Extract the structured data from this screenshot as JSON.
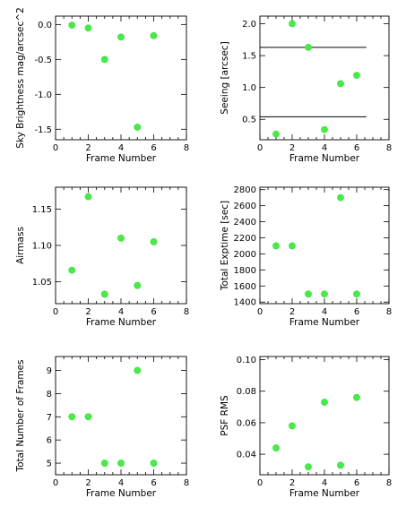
{
  "colors": {
    "point": "#44ee44",
    "axes": "#000000",
    "background": "#ffffff"
  },
  "chart_data": [
    {
      "type": "scatter",
      "title": "",
      "xlabel": "Frame Number",
      "ylabel": "Sky Brightness mag/arcsec^2",
      "xlim": [
        0,
        8
      ],
      "ylim": [
        -1.65,
        0.12
      ],
      "xticks": [
        0,
        2,
        4,
        6,
        8
      ],
      "yticks": [
        0.0,
        -0.5,
        -1.0,
        -1.5
      ],
      "ytick_labels": [
        "0.0",
        "-0.5",
        "-1.0",
        "-1.5"
      ],
      "grid": false,
      "series": [
        {
          "x": [
            1,
            2,
            3,
            4,
            5,
            6
          ],
          "y": [
            -0.01,
            -0.05,
            -0.5,
            -0.18,
            -1.47,
            -0.16
          ]
        }
      ]
    },
    {
      "type": "scatter",
      "title": "",
      "xlabel": "Frame Number",
      "ylabel": "Seeing [arcsec]",
      "xlim": [
        0,
        8
      ],
      "ylim": [
        0.18,
        2.12
      ],
      "xticks": [
        0,
        2,
        4,
        6,
        8
      ],
      "yticks": [
        0.5,
        1.0,
        1.5,
        2.0
      ],
      "ytick_labels": [
        "0.5",
        "1.0",
        "1.5",
        "2.0"
      ],
      "grid": false,
      "series": [
        {
          "x": [
            1,
            2,
            3,
            4,
            5,
            6
          ],
          "y": [
            0.27,
            2.0,
            1.63,
            0.34,
            1.06,
            1.19
          ]
        }
      ],
      "reference_lines": [
        1.63,
        0.54
      ]
    },
    {
      "type": "scatter",
      "title": "",
      "xlabel": "Frame Number",
      "ylabel": "Airmass",
      "xlim": [
        0,
        8
      ],
      "ylim": [
        1.02,
        1.18
      ],
      "xticks": [
        0,
        2,
        4,
        6,
        8
      ],
      "yticks": [
        1.05,
        1.1,
        1.15
      ],
      "ytick_labels": [
        "1.05",
        "1.10",
        "1.15"
      ],
      "grid": false,
      "series": [
        {
          "x": [
            1,
            2,
            3,
            4,
            5,
            6
          ],
          "y": [
            1.066,
            1.167,
            1.033,
            1.11,
            1.045,
            1.105
          ]
        }
      ]
    },
    {
      "type": "scatter",
      "title": "",
      "xlabel": "Frame Number",
      "ylabel": "Total Exptime [sec]",
      "xlim": [
        0,
        8
      ],
      "ylim": [
        1380,
        2830
      ],
      "xticks": [
        0,
        2,
        4,
        6,
        8
      ],
      "yticks": [
        1400,
        1600,
        1800,
        2000,
        2200,
        2400,
        2600,
        2800
      ],
      "ytick_labels": [
        "1400",
        "1600",
        "1800",
        "2000",
        "2200",
        "2400",
        "2600",
        "2800"
      ],
      "grid": false,
      "series": [
        {
          "x": [
            1,
            2,
            3,
            4,
            5,
            6
          ],
          "y": [
            2100,
            2100,
            1500,
            1500,
            2700,
            1500
          ]
        }
      ]
    },
    {
      "type": "scatter",
      "title": "",
      "xlabel": "Frame Number",
      "ylabel": "Total Number of Frames",
      "xlim": [
        0,
        8
      ],
      "ylim": [
        4.5,
        9.6
      ],
      "xticks": [
        0,
        2,
        4,
        6,
        8
      ],
      "yticks": [
        5,
        6,
        7,
        8,
        9
      ],
      "ytick_labels": [
        "5",
        "6",
        "7",
        "8",
        "9"
      ],
      "grid": false,
      "series": [
        {
          "x": [
            1,
            2,
            3,
            4,
            5,
            6
          ],
          "y": [
            7,
            7,
            5,
            5,
            9,
            5
          ]
        }
      ]
    },
    {
      "type": "scatter",
      "title": "",
      "xlabel": "Frame Number",
      "ylabel": "PSF RMS",
      "xlim": [
        0,
        8
      ],
      "ylim": [
        0.027,
        0.102
      ],
      "xticks": [
        0,
        2,
        4,
        6,
        8
      ],
      "yticks": [
        0.04,
        0.06,
        0.08,
        0.1
      ],
      "ytick_labels": [
        "0.04",
        "0.06",
        "0.08",
        "0.10"
      ],
      "grid": false,
      "series": [
        {
          "x": [
            1,
            2,
            3,
            4,
            5,
            6
          ],
          "y": [
            0.044,
            0.058,
            0.032,
            0.073,
            0.033,
            0.076
          ]
        }
      ]
    }
  ]
}
